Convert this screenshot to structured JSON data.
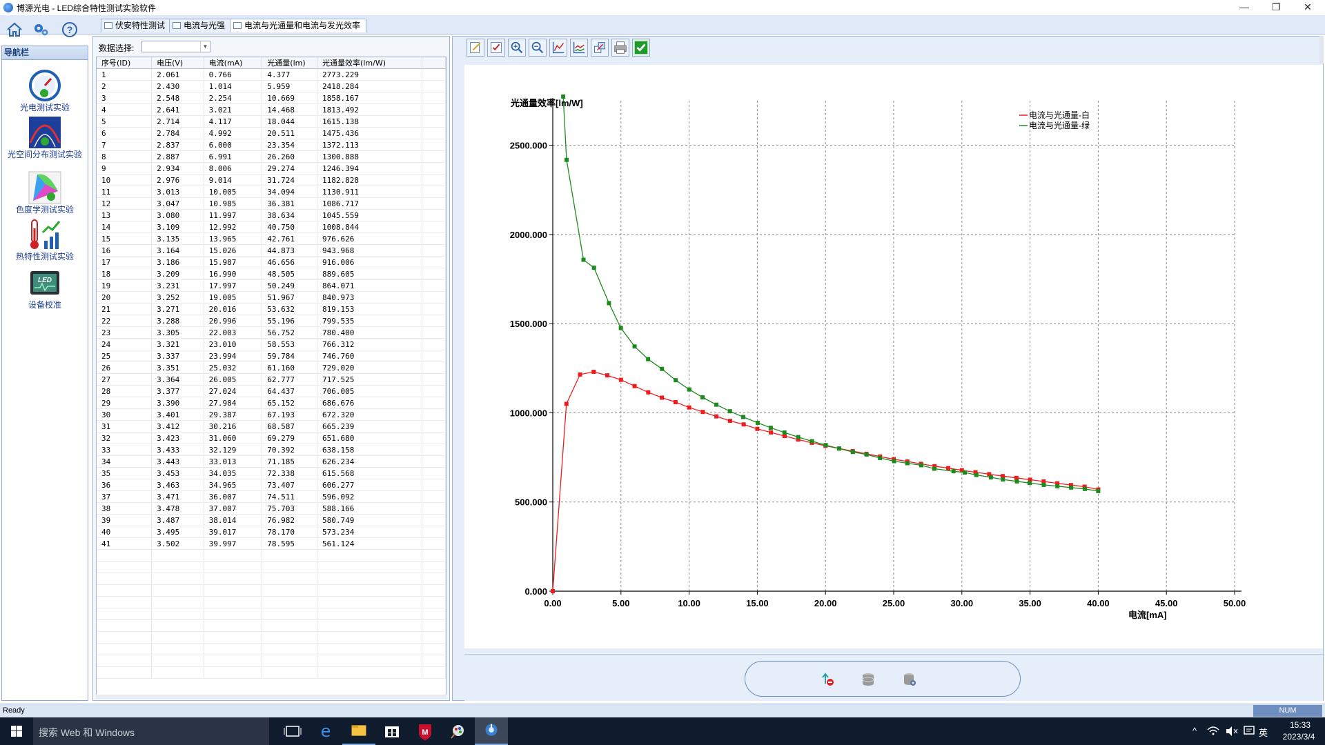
{
  "window": {
    "title": "博源光电 - LED综合特性测试实验软件",
    "minimize": "—",
    "maximize": "❐",
    "close": "✕"
  },
  "toolbar_icons": [
    "home-icon",
    "settings-icon",
    "help-icon"
  ],
  "tabs": [
    {
      "label": "伏安特性测试",
      "active": false
    },
    {
      "label": "电流与光强",
      "active": false
    },
    {
      "label": "电流与光通量和电流与发光效率",
      "active": true
    }
  ],
  "nav": {
    "header": "导航栏",
    "items": [
      {
        "label": "光电测试实验",
        "icon": "gauge-icon"
      },
      {
        "label": "光空间分布测试实验",
        "icon": "radiation-pattern-icon"
      },
      {
        "label": "色度学测试实验",
        "icon": "color-gamut-icon"
      },
      {
        "label": "热特性测试实验",
        "icon": "thermometer-chart-icon"
      },
      {
        "label": "设备校准",
        "icon": "led-display-icon"
      }
    ]
  },
  "data_panel": {
    "select_label": "数据选择:",
    "select_value": "",
    "columns": [
      "序号(ID)",
      "电压(V)",
      "电流(mA)",
      "光通量(lm)",
      "光通量效率(lm/W)"
    ],
    "rows": [
      [
        "1",
        "2.061",
        "0.766",
        "4.377",
        "2773.229"
      ],
      [
        "2",
        "2.430",
        "1.014",
        "5.959",
        "2418.284"
      ],
      [
        "3",
        "2.548",
        "2.254",
        "10.669",
        "1858.167"
      ],
      [
        "4",
        "2.641",
        "3.021",
        "14.468",
        "1813.492"
      ],
      [
        "5",
        "2.714",
        "4.117",
        "18.044",
        "1615.138"
      ],
      [
        "6",
        "2.784",
        "4.992",
        "20.511",
        "1475.436"
      ],
      [
        "7",
        "2.837",
        "6.000",
        "23.354",
        "1372.113"
      ],
      [
        "8",
        "2.887",
        "6.991",
        "26.260",
        "1300.888"
      ],
      [
        "9",
        "2.934",
        "8.006",
        "29.274",
        "1246.394"
      ],
      [
        "10",
        "2.976",
        "9.014",
        "31.724",
        "1182.828"
      ],
      [
        "11",
        "3.013",
        "10.005",
        "34.094",
        "1130.911"
      ],
      [
        "12",
        "3.047",
        "10.985",
        "36.381",
        "1086.717"
      ],
      [
        "13",
        "3.080",
        "11.997",
        "38.634",
        "1045.559"
      ],
      [
        "14",
        "3.109",
        "12.992",
        "40.750",
        "1008.844"
      ],
      [
        "15",
        "3.135",
        "13.965",
        "42.761",
        "976.626"
      ],
      [
        "16",
        "3.164",
        "15.026",
        "44.873",
        "943.968"
      ],
      [
        "17",
        "3.186",
        "15.987",
        "46.656",
        "916.006"
      ],
      [
        "18",
        "3.209",
        "16.990",
        "48.505",
        "889.605"
      ],
      [
        "19",
        "3.231",
        "17.997",
        "50.249",
        "864.071"
      ],
      [
        "20",
        "3.252",
        "19.005",
        "51.967",
        "840.973"
      ],
      [
        "21",
        "3.271",
        "20.016",
        "53.632",
        "819.153"
      ],
      [
        "22",
        "3.288",
        "20.996",
        "55.196",
        "799.535"
      ],
      [
        "23",
        "3.305",
        "22.003",
        "56.752",
        "780.400"
      ],
      [
        "24",
        "3.321",
        "23.010",
        "58.553",
        "766.312"
      ],
      [
        "25",
        "3.337",
        "23.994",
        "59.784",
        "746.760"
      ],
      [
        "26",
        "3.351",
        "25.032",
        "61.160",
        "729.020"
      ],
      [
        "27",
        "3.364",
        "26.005",
        "62.777",
        "717.525"
      ],
      [
        "28",
        "3.377",
        "27.024",
        "64.437",
        "706.005"
      ],
      [
        "29",
        "3.390",
        "27.984",
        "65.152",
        "686.676"
      ],
      [
        "30",
        "3.401",
        "29.387",
        "67.193",
        "672.320"
      ],
      [
        "31",
        "3.412",
        "30.216",
        "68.587",
        "665.239"
      ],
      [
        "32",
        "3.423",
        "31.060",
        "69.279",
        "651.680"
      ],
      [
        "33",
        "3.433",
        "32.129",
        "70.392",
        "638.158"
      ],
      [
        "34",
        "3.443",
        "33.013",
        "71.185",
        "626.234"
      ],
      [
        "35",
        "3.453",
        "34.035",
        "72.338",
        "615.568"
      ],
      [
        "36",
        "3.463",
        "34.965",
        "73.407",
        "606.277"
      ],
      [
        "37",
        "3.471",
        "36.007",
        "74.511",
        "596.092"
      ],
      [
        "38",
        "3.478",
        "37.007",
        "75.703",
        "588.166"
      ],
      [
        "39",
        "3.487",
        "38.014",
        "76.982",
        "580.749"
      ],
      [
        "40",
        "3.495",
        "39.017",
        "78.170",
        "573.234"
      ],
      [
        "41",
        "3.502",
        "39.997",
        "78.595",
        "561.124"
      ]
    ]
  },
  "chart_toolbar_icons": [
    "edit-icon",
    "checklist-icon",
    "zoom-in-icon",
    "zoom-out-icon",
    "axis-chart-icon",
    "line-chart-icon",
    "export-icon",
    "print-icon",
    "confirm-check-icon"
  ],
  "chart_data": {
    "type": "line",
    "title": "",
    "ylabel": "光通量效率[lm/W]",
    "xlabel": "电流[mA]",
    "xlim": [
      0,
      50
    ],
    "ylim": [
      0,
      2750
    ],
    "xticks": [
      "0.00",
      "5.00",
      "10.00",
      "15.00",
      "20.00",
      "25.00",
      "30.00",
      "35.00",
      "40.00",
      "45.00",
      "50.00"
    ],
    "yticks": [
      "0.000",
      "500.000",
      "1000.000",
      "1500.000",
      "2000.000",
      "2500.000"
    ],
    "grid": true,
    "legend_position": "top-right",
    "series": [
      {
        "name": "电流与光通量-白",
        "color": "#ee1c1c",
        "points": [
          [
            0.0,
            0
          ],
          [
            1.0,
            1050
          ],
          [
            2.0,
            1215
          ],
          [
            3.0,
            1230
          ],
          [
            4.0,
            1210
          ],
          [
            5.0,
            1185
          ],
          [
            6.0,
            1150
          ],
          [
            7.0,
            1115
          ],
          [
            8.0,
            1085
          ],
          [
            9.0,
            1060
          ],
          [
            10.0,
            1030
          ],
          [
            11.0,
            1005
          ],
          [
            12.0,
            980
          ],
          [
            13.0,
            955
          ],
          [
            14.0,
            935
          ],
          [
            15.0,
            910
          ],
          [
            16.0,
            890
          ],
          [
            17.0,
            870
          ],
          [
            18.0,
            850
          ],
          [
            19.0,
            832
          ],
          [
            20.0,
            815
          ],
          [
            21.0,
            800
          ],
          [
            22.0,
            785
          ],
          [
            23.0,
            770
          ],
          [
            24.0,
            755
          ],
          [
            25.0,
            740
          ],
          [
            26.0,
            727
          ],
          [
            27.0,
            714
          ],
          [
            28.0,
            701
          ],
          [
            29.0,
            690
          ],
          [
            30.0,
            678
          ],
          [
            31.0,
            667
          ],
          [
            32.0,
            656
          ],
          [
            33.0,
            645
          ],
          [
            34.0,
            635
          ],
          [
            35.0,
            625
          ],
          [
            36.0,
            615
          ],
          [
            37.0,
            605
          ],
          [
            38.0,
            595
          ],
          [
            39.0,
            586
          ],
          [
            40.0,
            570
          ]
        ]
      },
      {
        "name": "电流与光通量-绿",
        "color": "#1e8a1e",
        "points": [
          [
            0.766,
            2773.229
          ],
          [
            1.014,
            2418.284
          ],
          [
            2.254,
            1858.167
          ],
          [
            3.021,
            1813.492
          ],
          [
            4.117,
            1615.138
          ],
          [
            4.992,
            1475.436
          ],
          [
            6.0,
            1372.113
          ],
          [
            6.991,
            1300.888
          ],
          [
            8.006,
            1246.394
          ],
          [
            9.014,
            1182.828
          ],
          [
            10.005,
            1130.911
          ],
          [
            10.985,
            1086.717
          ],
          [
            11.997,
            1045.559
          ],
          [
            12.992,
            1008.844
          ],
          [
            13.965,
            976.626
          ],
          [
            15.026,
            943.968
          ],
          [
            15.987,
            916.006
          ],
          [
            16.99,
            889.605
          ],
          [
            17.997,
            864.071
          ],
          [
            19.005,
            840.973
          ],
          [
            20.016,
            819.153
          ],
          [
            20.996,
            799.535
          ],
          [
            22.003,
            780.4
          ],
          [
            23.01,
            766.312
          ],
          [
            23.994,
            746.76
          ],
          [
            25.032,
            729.02
          ],
          [
            26.005,
            717.525
          ],
          [
            27.024,
            706.005
          ],
          [
            27.984,
            686.676
          ],
          [
            29.387,
            672.32
          ],
          [
            30.216,
            665.239
          ],
          [
            31.06,
            651.68
          ],
          [
            32.129,
            638.158
          ],
          [
            33.013,
            626.234
          ],
          [
            34.035,
            615.568
          ],
          [
            34.965,
            606.277
          ],
          [
            36.007,
            596.092
          ],
          [
            37.007,
            588.166
          ],
          [
            38.014,
            580.749
          ],
          [
            39.017,
            573.234
          ],
          [
            39.997,
            561.124
          ]
        ]
      }
    ]
  },
  "bottom_actions": [
    "usb-disconnect-icon",
    "database-icon",
    "database-settings-icon"
  ],
  "statusbar": {
    "text": "Ready",
    "num": "NUM"
  },
  "taskbar": {
    "search_placeholder": "搜索 Web 和 Windows",
    "apps": [
      "task-view-icon",
      "edge-icon",
      "file-explorer-icon",
      "store-icon",
      "mcafee-icon",
      "paint-icon",
      "app-icon"
    ],
    "tray_lang": "英",
    "time": "15:33",
    "date": "2023/3/4"
  }
}
